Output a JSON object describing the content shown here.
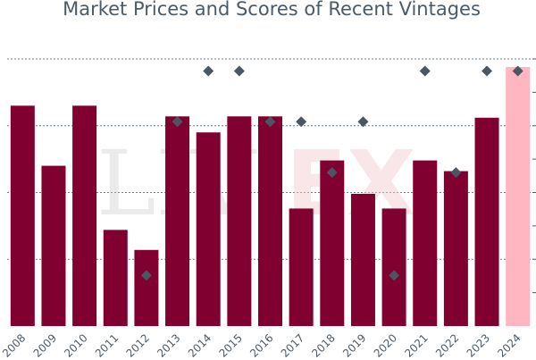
{
  "chart_data": {
    "type": "bar",
    "title": "Market Prices and Scores of Recent Vintages",
    "categories": [
      "2008",
      "2009",
      "2010",
      "2011",
      "2012",
      "2013",
      "2014",
      "2015",
      "2016",
      "2017",
      "2018",
      "2019",
      "2020",
      "2021",
      "2022",
      "2023",
      "2024"
    ],
    "series": [
      {
        "type": "bar",
        "values": [
          165,
          120,
          165,
          72,
          57,
          157,
          145,
          157,
          157,
          88,
          124,
          99,
          88,
          124,
          116,
          156,
          194
        ],
        "colors": [
          "#80002f",
          "#80002f",
          "#80002f",
          "#80002f",
          "#80002f",
          "#80002f",
          "#80002f",
          "#80002f",
          "#80002f",
          "#80002f",
          "#80002f",
          "#80002f",
          "#80002f",
          "#80002f",
          "#80002f",
          "#80002f",
          "#ffb6c1"
        ]
      },
      {
        "type": "scatter",
        "marker": "diamond",
        "color": "#4a5662",
        "points": [
          {
            "x": "2012",
            "y": 38
          },
          {
            "x": "2013",
            "y": 153
          },
          {
            "x": "2014",
            "y": 191
          },
          {
            "x": "2015",
            "y": 191
          },
          {
            "x": "2016",
            "y": 153
          },
          {
            "x": "2017",
            "y": 153
          },
          {
            "x": "2018",
            "y": 115
          },
          {
            "x": "2019",
            "y": 153
          },
          {
            "x": "2020",
            "y": 38
          },
          {
            "x": "2021",
            "y": 191
          },
          {
            "x": "2022",
            "y": 115
          },
          {
            "x": "2023",
            "y": 191
          },
          {
            "x": "2024",
            "y": 191
          }
        ]
      }
    ],
    "ylim": [
      0,
      200
    ],
    "grid": true,
    "gridlines": [
      50,
      100,
      150,
      200
    ]
  },
  "watermark": {
    "part1": "LIV",
    "part2": "EX"
  }
}
